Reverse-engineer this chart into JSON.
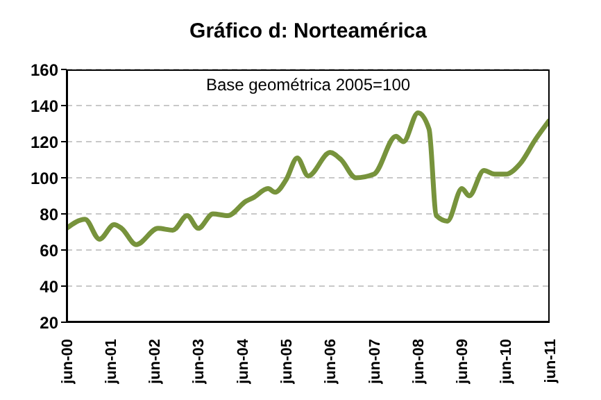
{
  "chart_data": {
    "type": "line",
    "title": "Gráfico d: Norteamérica",
    "annotations": [
      "Base geométrica 2005=100"
    ],
    "x": [
      "2000-06",
      "2000-11",
      "2001-03",
      "2001-07",
      "2001-09",
      "2002-01",
      "2002-07",
      "2002-11",
      "2003-03",
      "2003-06",
      "2003-10",
      "2004-02",
      "2004-07",
      "2004-09",
      "2005-01",
      "2005-03",
      "2005-06",
      "2005-09",
      "2005-12",
      "2006-06",
      "2006-09",
      "2007-01",
      "2007-06",
      "2007-12",
      "2008-02",
      "2008-06",
      "2008-09",
      "2008-11",
      "2009-02",
      "2009-06",
      "2009-08",
      "2009-12",
      "2010-03",
      "2010-06",
      "2010-10",
      "2011-02",
      "2011-06"
    ],
    "series": [
      {
        "color": "#77933c",
        "values": [
          72,
          77,
          66,
          74,
          72,
          63,
          72,
          71,
          79,
          72,
          80,
          79,
          87,
          89,
          94,
          92,
          99,
          111,
          101,
          114,
          110,
          100,
          102,
          123,
          120,
          136,
          127,
          79,
          76,
          94,
          90,
          104,
          102,
          102,
          108,
          121,
          132
        ]
      }
    ],
    "xlim": [
      "2000-06",
      "2011-06"
    ],
    "xticks": [
      {
        "value": "2000-06",
        "label": "jun-00"
      },
      {
        "value": "2001-06",
        "label": "jun-01"
      },
      {
        "value": "2002-06",
        "label": "jun-02"
      },
      {
        "value": "2003-06",
        "label": "jun-03"
      },
      {
        "value": "2004-06",
        "label": "jun-04"
      },
      {
        "value": "2005-06",
        "label": "jun-05"
      },
      {
        "value": "2006-06",
        "label": "jun-06"
      },
      {
        "value": "2007-06",
        "label": "jun-07"
      },
      {
        "value": "2008-06",
        "label": "jun-08"
      },
      {
        "value": "2009-06",
        "label": "jun-09"
      },
      {
        "value": "2010-06",
        "label": "jun-10"
      },
      {
        "value": "2011-06",
        "label": "jun-11"
      }
    ],
    "ylim": [
      20,
      160
    ],
    "yticks": [
      20,
      40,
      60,
      80,
      100,
      120,
      140,
      160
    ],
    "grid": "y",
    "legend": false,
    "marker": "none",
    "line_style": "solid"
  }
}
